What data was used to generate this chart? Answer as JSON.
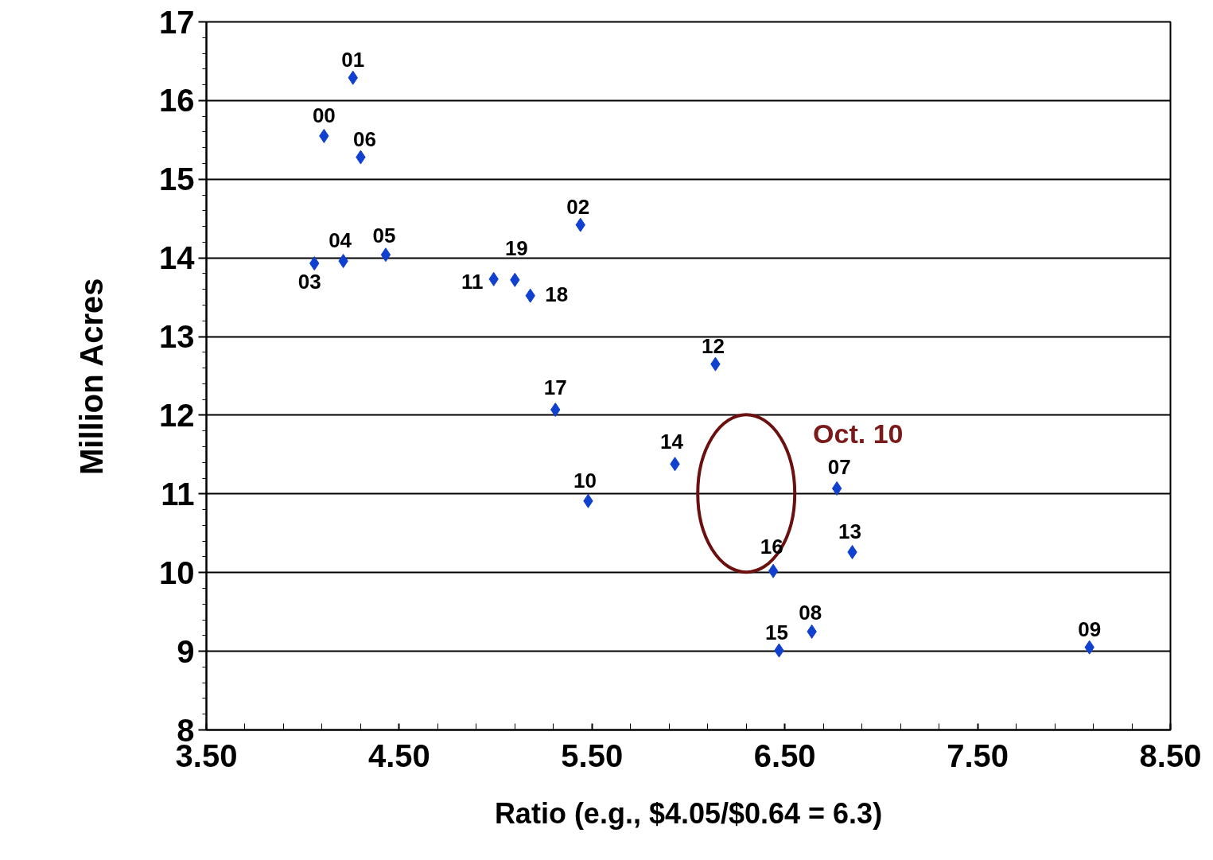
{
  "chart_data": {
    "type": "scatter",
    "xlabel": "Ratio (e.g., $4.05/$0.64 = 6.3)",
    "ylabel": "Million Acres",
    "x": [
      4.26,
      4.11,
      4.3,
      5.44,
      4.06,
      4.21,
      4.43,
      4.99,
      5.1,
      5.18,
      6.14,
      5.31,
      5.93,
      5.48,
      6.77,
      6.85,
      6.44,
      6.64,
      6.47,
      8.08
    ],
    "values": [
      16.29,
      15.55,
      15.28,
      14.42,
      13.93,
      13.96,
      14.04,
      13.73,
      13.72,
      13.52,
      12.65,
      12.07,
      11.38,
      10.91,
      11.07,
      10.26,
      10.02,
      9.25,
      9.01,
      9.05
    ],
    "color": "#1040d0",
    "marker": "diamond",
    "xlim": [
      3.5,
      8.5
    ],
    "xticks": [
      {
        "value": 3.5,
        "label": "3.50"
      },
      {
        "value": 4.5,
        "label": "4.50"
      },
      {
        "value": 5.5,
        "label": "5.50"
      },
      {
        "value": 6.5,
        "label": "6.50"
      },
      {
        "value": 7.5,
        "label": "7.50"
      },
      {
        "value": 8.5,
        "label": "8.50"
      }
    ],
    "ylim": [
      8,
      17
    ],
    "yticks": [
      8,
      9,
      10,
      11,
      12,
      13,
      14,
      15,
      16,
      17
    ],
    "grid": "y",
    "annotations": [
      {
        "text": "01",
        "x": 4.26,
        "y": 16.29
      },
      {
        "text": "00",
        "x": 4.11,
        "y": 15.55
      },
      {
        "text": "06",
        "x": 4.3,
        "y": 15.28
      },
      {
        "text": "02",
        "x": 5.44,
        "y": 14.42
      },
      {
        "text": "03",
        "x": 4.06,
        "y": 13.93
      },
      {
        "text": "04",
        "x": 4.21,
        "y": 13.96
      },
      {
        "text": "05",
        "x": 4.43,
        "y": 14.04
      },
      {
        "text": "11",
        "x": 4.99,
        "y": 13.73
      },
      {
        "text": "19",
        "x": 5.1,
        "y": 13.72
      },
      {
        "text": "18",
        "x": 5.18,
        "y": 13.52
      },
      {
        "text": "12",
        "x": 6.14,
        "y": 12.65
      },
      {
        "text": "17",
        "x": 5.31,
        "y": 12.07
      },
      {
        "text": "14",
        "x": 5.93,
        "y": 11.38
      },
      {
        "text": "10",
        "x": 5.48,
        "y": 10.91
      },
      {
        "text": "07",
        "x": 6.77,
        "y": 11.07
      },
      {
        "text": "13",
        "x": 6.85,
        "y": 10.26
      },
      {
        "text": "16",
        "x": 6.44,
        "y": 10.02
      },
      {
        "text": "08",
        "x": 6.64,
        "y": 9.25
      },
      {
        "text": "15",
        "x": 6.47,
        "y": 9.01
      },
      {
        "text": "09",
        "x": 8.08,
        "y": 9.05
      },
      "Oct. 10"
    ]
  }
}
